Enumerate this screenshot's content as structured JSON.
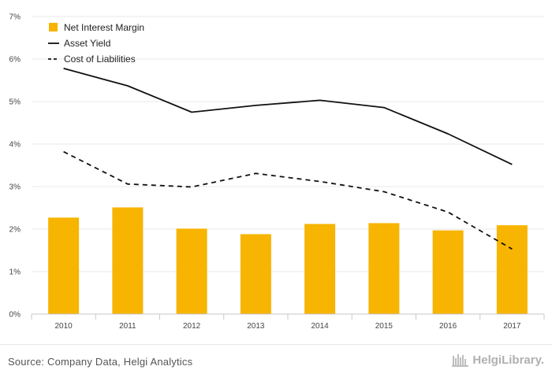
{
  "chart_data": {
    "type": "bar",
    "categories": [
      "2010",
      "2011",
      "2012",
      "2013",
      "2014",
      "2015",
      "2016",
      "2017"
    ],
    "series": [
      {
        "name": "Net Interest Margin",
        "kind": "bar",
        "color": "#f7b400",
        "values": [
          2.27,
          2.51,
          2.01,
          1.88,
          2.12,
          2.14,
          1.97,
          2.09
        ]
      },
      {
        "name": "Asset Yield",
        "kind": "line",
        "style": "solid",
        "color": "#111111",
        "values": [
          5.78,
          5.37,
          4.75,
          4.91,
          5.03,
          4.86,
          4.24,
          3.52
        ]
      },
      {
        "name": "Cost of Liabilities",
        "kind": "line",
        "style": "dashed",
        "color": "#111111",
        "values": [
          3.82,
          3.06,
          2.99,
          3.31,
          3.12,
          2.88,
          2.4,
          1.53
        ]
      }
    ],
    "yticks": [
      "0%",
      "1%",
      "2%",
      "3%",
      "4%",
      "5%",
      "6%",
      "7%"
    ],
    "ylim": [
      0,
      7
    ],
    "grid": true,
    "legend_position": "top-left"
  },
  "footer": {
    "source": "Source: Company Data, Helgi Analytics",
    "logo_text": "HelgiLibrary."
  }
}
